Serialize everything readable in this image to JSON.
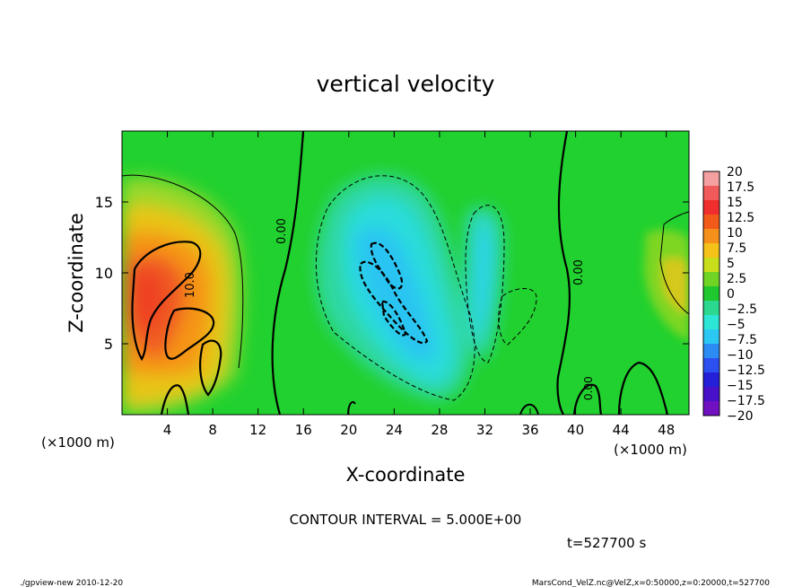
{
  "chart_data": {
    "type": "heatmap",
    "title": "vertical velocity",
    "xlabel": "X-coordinate",
    "ylabel": "Z-coordinate",
    "x_unit": "(×1000 m)",
    "xlim": [
      0,
      50
    ],
    "ylim": [
      0,
      20
    ],
    "x_ticks": [
      4,
      8,
      12,
      16,
      20,
      24,
      28,
      32,
      36,
      40,
      44,
      48
    ],
    "y_ticks": [
      5,
      10,
      15
    ],
    "colorbar": {
      "levels": [
        20,
        17.5,
        15,
        12.5,
        10,
        7.5,
        5,
        2.5,
        0,
        -2.5,
        -5,
        -7.5,
        -10,
        -12.5,
        -15,
        -17.5,
        -20
      ],
      "labels": [
        "20",
        "17.5",
        "15",
        "12.5",
        "10",
        "7.5",
        "5",
        "2.5",
        "0",
        "−2.5",
        "−5",
        "−7.5",
        "−10",
        "−12.5",
        "−15",
        "−17.5",
        "−20"
      ],
      "colors": [
        "#f4a0a0",
        "#f05a5a",
        "#f02e2e",
        "#f25a1a",
        "#f5901a",
        "#f5c21a",
        "#c8de1a",
        "#70d424",
        "#20c830",
        "#2cd890",
        "#2ce6d6",
        "#2cc8f4",
        "#2c8cf4",
        "#2c50f0",
        "#2420d8",
        "#4810c8",
        "#7010c0"
      ]
    },
    "contour_labels": [
      "0.00",
      "10.0",
      "0.00",
      "0.00"
    ],
    "contour_interval_text": "CONTOUR INTERVAL = 5.000E+00",
    "time_text": "t=527700 s"
  },
  "footer": {
    "left": "./gpview-new  2010-12-20",
    "right": "MarsCond_VelZ.nc@VelZ,x=0:50000,z=0:20000,t=527700"
  },
  "colors": {
    "background": "#21d12f"
  }
}
